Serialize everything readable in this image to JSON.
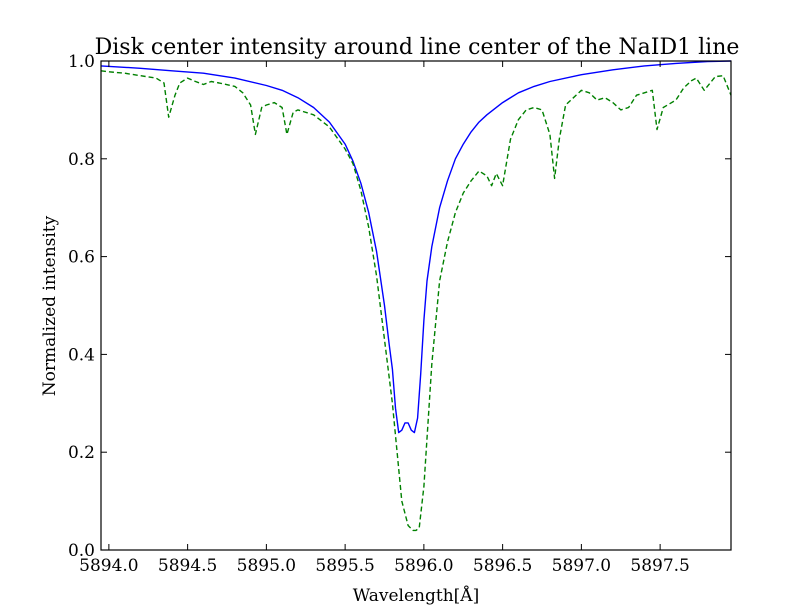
{
  "chart_data": {
    "type": "line",
    "title": "Disk center intensity around line center of the NaID1 line",
    "xlabel": "Wavelength[Å]",
    "ylabel": "Normalized intensity",
    "xlim": [
      5893.95,
      5897.95
    ],
    "ylim": [
      0.0,
      1.0
    ],
    "grid": false,
    "xticks": [
      5894.0,
      5894.5,
      5895.0,
      5895.5,
      5896.0,
      5896.5,
      5897.0,
      5897.5
    ],
    "xtick_labels": [
      "5894.0",
      "5894.5",
      "5895.0",
      "5895.5",
      "5896.0",
      "5896.5",
      "5897.0",
      "5897.5"
    ],
    "yticks": [
      0.0,
      0.2,
      0.4,
      0.6,
      0.8,
      1.0
    ],
    "ytick_labels": [
      "0.0",
      "0.2",
      "0.4",
      "0.6",
      "0.8",
      "1.0"
    ],
    "series": [
      {
        "color": "#0000ff",
        "style": "solid",
        "x": [
          5893.95,
          5894.2,
          5894.4,
          5894.6,
          5894.8,
          5895.0,
          5895.1,
          5895.2,
          5895.3,
          5895.4,
          5895.5,
          5895.55,
          5895.6,
          5895.65,
          5895.7,
          5895.75,
          5895.78,
          5895.8,
          5895.82,
          5895.84,
          5895.86,
          5895.88,
          5895.9,
          5895.92,
          5895.94,
          5895.96,
          5895.98,
          5896.0,
          5896.02,
          5896.05,
          5896.1,
          5896.15,
          5896.2,
          5896.25,
          5896.3,
          5896.35,
          5896.4,
          5896.5,
          5896.6,
          5896.7,
          5896.8,
          5897.0,
          5897.2,
          5897.4,
          5897.6,
          5897.8,
          5897.95
        ],
        "y": [
          0.99,
          0.985,
          0.98,
          0.975,
          0.965,
          0.95,
          0.94,
          0.925,
          0.905,
          0.875,
          0.83,
          0.795,
          0.75,
          0.69,
          0.61,
          0.5,
          0.42,
          0.37,
          0.29,
          0.24,
          0.245,
          0.26,
          0.26,
          0.245,
          0.24,
          0.27,
          0.36,
          0.47,
          0.55,
          0.62,
          0.7,
          0.755,
          0.8,
          0.83,
          0.855,
          0.875,
          0.89,
          0.915,
          0.935,
          0.948,
          0.958,
          0.972,
          0.982,
          0.99,
          0.995,
          0.999,
          1.0
        ]
      },
      {
        "color": "#008000",
        "style": "dashed",
        "x": [
          5893.95,
          5894.0,
          5894.1,
          5894.2,
          5894.3,
          5894.35,
          5894.38,
          5894.42,
          5894.45,
          5894.5,
          5894.55,
          5894.6,
          5894.65,
          5894.7,
          5894.8,
          5894.85,
          5894.9,
          5894.93,
          5894.97,
          5895.0,
          5895.05,
          5895.1,
          5895.13,
          5895.17,
          5895.2,
          5895.3,
          5895.4,
          5895.5,
          5895.55,
          5895.6,
          5895.65,
          5895.7,
          5895.75,
          5895.8,
          5895.83,
          5895.86,
          5895.9,
          5895.93,
          5895.95,
          5895.97,
          5896.0,
          5896.05,
          5896.1,
          5896.15,
          5896.2,
          5896.25,
          5896.3,
          5896.35,
          5896.4,
          5896.43,
          5896.46,
          5896.5,
          5896.55,
          5896.6,
          5896.65,
          5896.7,
          5896.75,
          5896.8,
          5896.83,
          5896.86,
          5896.9,
          5897.0,
          5897.05,
          5897.1,
          5897.15,
          5897.2,
          5897.25,
          5897.3,
          5897.35,
          5897.4,
          5897.45,
          5897.48,
          5897.52,
          5897.6,
          5897.65,
          5897.7,
          5897.73,
          5897.78,
          5897.85,
          5897.9,
          5897.95
        ],
        "y": [
          0.98,
          0.978,
          0.975,
          0.97,
          0.965,
          0.955,
          0.885,
          0.93,
          0.955,
          0.965,
          0.958,
          0.952,
          0.958,
          0.955,
          0.948,
          0.935,
          0.91,
          0.85,
          0.905,
          0.91,
          0.915,
          0.905,
          0.85,
          0.895,
          0.9,
          0.89,
          0.865,
          0.82,
          0.79,
          0.735,
          0.66,
          0.56,
          0.43,
          0.3,
          0.2,
          0.1,
          0.05,
          0.04,
          0.04,
          0.045,
          0.13,
          0.38,
          0.55,
          0.63,
          0.69,
          0.73,
          0.755,
          0.775,
          0.765,
          0.745,
          0.77,
          0.745,
          0.84,
          0.88,
          0.9,
          0.905,
          0.9,
          0.85,
          0.76,
          0.84,
          0.91,
          0.94,
          0.935,
          0.92,
          0.925,
          0.915,
          0.9,
          0.905,
          0.93,
          0.935,
          0.94,
          0.86,
          0.905,
          0.92,
          0.945,
          0.96,
          0.965,
          0.94,
          0.968,
          0.97,
          0.93
        ]
      }
    ]
  }
}
